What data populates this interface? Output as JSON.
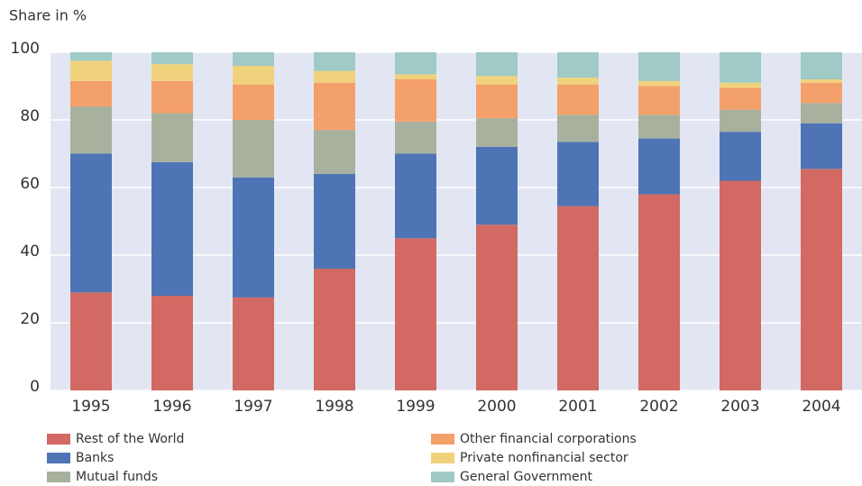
{
  "chart_data": {
    "type": "stacked_bar",
    "y_axis_label": "Share in %",
    "categories": [
      "1995",
      "1996",
      "1997",
      "1998",
      "1999",
      "2000",
      "2001",
      "2002",
      "2003",
      "2004"
    ],
    "series": [
      {
        "name": "Rest of the World",
        "color": "#d26a63",
        "values": [
          29,
          28,
          27.5,
          36,
          45,
          49,
          54.5,
          58,
          62,
          65.5
        ]
      },
      {
        "name": "Banks",
        "color": "#4e74b5",
        "values": [
          41,
          39.5,
          35.5,
          28,
          25,
          23,
          19,
          16.5,
          14.5,
          13.5
        ]
      },
      {
        "name": "Mutual funds",
        "color": "#a7b19e",
        "values": [
          14,
          14.5,
          17,
          13,
          9.5,
          8.5,
          8,
          7,
          6.5,
          6
        ]
      },
      {
        "name": "Other financial corporations",
        "color": "#f4a06a",
        "values": [
          7.5,
          9.5,
          10.5,
          14,
          12.5,
          10,
          9,
          8.5,
          6.5,
          6
        ]
      },
      {
        "name": "Private nonfinancial sector",
        "color": "#f1d27c",
        "values": [
          6,
          5,
          5.5,
          3.5,
          1.5,
          2.5,
          2,
          1.5,
          1.5,
          1
        ]
      },
      {
        "name": "General Government",
        "color": "#9fcac5",
        "values": [
          2.5,
          3.5,
          4,
          5.5,
          6.5,
          7,
          7.5,
          8.5,
          9,
          8
        ]
      }
    ],
    "ylim": [
      0,
      100
    ],
    "yticks": [
      0,
      20,
      40,
      60,
      80,
      100
    ],
    "grid": true,
    "plot_background": "#e2e6f3"
  }
}
